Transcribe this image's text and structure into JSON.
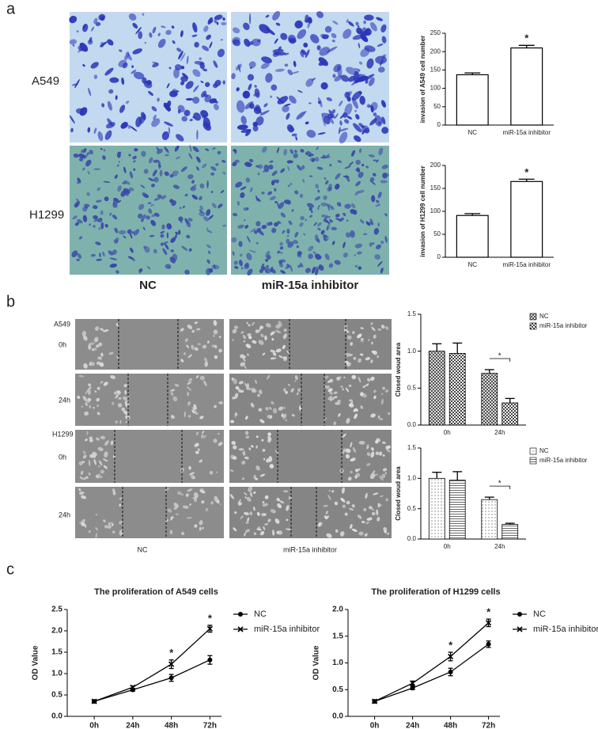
{
  "panel_labels": [
    "a",
    "b",
    "c"
  ],
  "panel_a": {
    "row_labels": [
      "A549",
      "H1299"
    ],
    "col_labels": [
      "NC",
      "miR-15a inhibitor"
    ]
  },
  "panel_b": {
    "row_labels": [
      {
        "line": "A549",
        "time": "0h"
      },
      {
        "time": "24h"
      },
      {
        "line": "H1299",
        "time": "0h"
      },
      {
        "time": "24h"
      }
    ],
    "col_labels": [
      "NC",
      "miR-15a inhibitor"
    ]
  },
  "chart_data": [
    {
      "type": "bar",
      "y_label": "invasion of A549 cell number",
      "categories": [
        "NC",
        "miR-15a inhibitor"
      ],
      "values": [
        137,
        210
      ],
      "errors": [
        5,
        7
      ],
      "significance": [
        null,
        "*"
      ],
      "color": "#ffffff",
      "ylim": [
        0,
        250
      ],
      "yticks": [
        0,
        50,
        100,
        150,
        200,
        250
      ]
    },
    {
      "type": "bar",
      "y_label": "invasion of H1299 cell number",
      "categories": [
        "NC",
        "miR-15a inhibitor"
      ],
      "values": [
        91,
        165
      ],
      "errors": [
        4,
        5
      ],
      "significance": [
        null,
        "*"
      ],
      "color": "#ffffff",
      "ylim": [
        0,
        200
      ],
      "yticks": [
        0,
        50,
        100,
        150,
        200
      ]
    },
    {
      "type": "grouped_bar",
      "y_label": "Closed woud area",
      "categories": [
        "0h",
        "24h"
      ],
      "series": [
        {
          "name": "NC",
          "pattern": "crosshatch",
          "values": [
            1.0,
            0.7
          ],
          "errors": [
            0.1,
            0.05
          ]
        },
        {
          "name": "miR-15a inhibitor",
          "pattern": "checker",
          "values": [
            0.97,
            0.3
          ],
          "errors": [
            0.14,
            0.06
          ]
        }
      ],
      "significance": [
        null,
        "*"
      ],
      "ylim": [
        0,
        1.5
      ],
      "yticks": [
        {
          "value": 0,
          "label": "0.0"
        },
        0.5,
        {
          "value": 1,
          "label": "1.0"
        },
        1.5
      ]
    },
    {
      "type": "grouped_bar",
      "y_label": "Closed woud area",
      "categories": [
        "0h",
        "24h"
      ],
      "series": [
        {
          "name": "NC",
          "pattern": "dots",
          "values": [
            1.0,
            0.65
          ],
          "errors": [
            0.1,
            0.04
          ]
        },
        {
          "name": "miR-15a inhibitor",
          "pattern": "hlines",
          "values": [
            0.97,
            0.24
          ],
          "errors": [
            0.14,
            0.02
          ]
        }
      ],
      "significance": [
        null,
        "*"
      ],
      "ylim": [
        0,
        1.5
      ],
      "yticks": [
        {
          "value": 0,
          "label": "0.0"
        },
        0.5,
        {
          "value": 1,
          "label": "1.0"
        },
        1.5
      ]
    },
    {
      "type": "line",
      "title": "The proliferation of A549 cells",
      "y_label": "OD Value",
      "categories": [
        "0h",
        "24h",
        "48h",
        "72h"
      ],
      "series": [
        {
          "name": "NC",
          "marker": "circle",
          "values": [
            0.35,
            0.62,
            0.9,
            1.32
          ],
          "errors": [
            0.02,
            0.03,
            0.08,
            0.1
          ]
        },
        {
          "name": "miR-15a inhibitor",
          "marker": "x",
          "values": [
            0.35,
            0.68,
            1.22,
            2.05
          ],
          "errors": [
            0.02,
            0.03,
            0.1,
            0.08
          ]
        }
      ],
      "significance": [
        null,
        null,
        "*",
        "*"
      ],
      "ylim": [
        0,
        2.5
      ],
      "yticks": [
        {
          "value": 0,
          "label": "0.0"
        },
        0.5,
        {
          "value": 1,
          "label": "1.0"
        },
        1.5,
        {
          "value": 2,
          "label": "2.0"
        },
        2.5
      ]
    },
    {
      "type": "line",
      "title": "The proliferation of H1299 cells",
      "y_label": "OD Value",
      "categories": [
        "0h",
        "24h",
        "48h",
        "72h"
      ],
      "series": [
        {
          "name": "NC",
          "marker": "circle",
          "values": [
            0.28,
            0.53,
            0.83,
            1.35
          ],
          "errors": [
            0.02,
            0.03,
            0.07,
            0.06
          ]
        },
        {
          "name": "miR-15a inhibitor",
          "marker": "x",
          "values": [
            0.28,
            0.62,
            1.12,
            1.75
          ],
          "errors": [
            0.02,
            0.04,
            0.08,
            0.07
          ]
        }
      ],
      "significance": [
        null,
        null,
        "*",
        "*"
      ],
      "ylim": [
        0,
        2.0
      ],
      "yticks": [
        {
          "value": 0,
          "label": "0.0"
        },
        0.5,
        {
          "value": 1,
          "label": "1.0"
        },
        1.5,
        {
          "value": 2,
          "label": "2.0"
        }
      ]
    }
  ]
}
